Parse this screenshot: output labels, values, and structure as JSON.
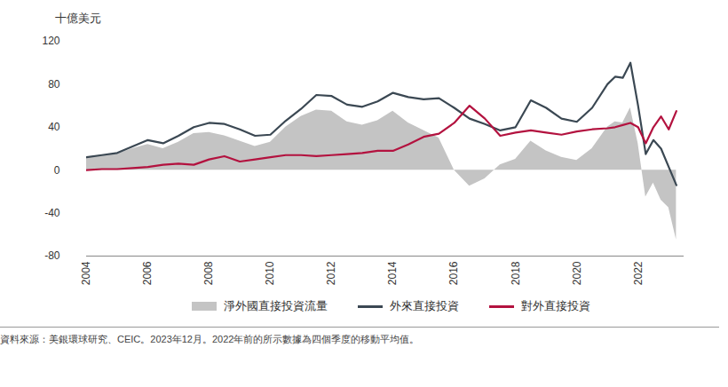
{
  "chart_data": {
    "type": "line",
    "y_label": "十億美元",
    "caption": "資料來源：美銀環球研究、CEIC。2023年12月。2022年前的所示數據為四個季度的移動平均值。",
    "x": [
      2004,
      2004.5,
      2005,
      2005.5,
      2006,
      2006.5,
      2007,
      2007.5,
      2008,
      2008.5,
      2009,
      2009.5,
      2010,
      2010.5,
      2011,
      2011.5,
      2012,
      2012.5,
      2013,
      2013.5,
      2014,
      2014.5,
      2015,
      2015.5,
      2016,
      2016.5,
      2017,
      2017.5,
      2018,
      2018.5,
      2019,
      2019.5,
      2020,
      2020.5,
      2021,
      2021.25,
      2021.5,
      2021.75,
      2022,
      2022.25,
      2022.5,
      2022.75,
      2023,
      2023.25
    ],
    "series": [
      {
        "name": "淨外國直接投資流量",
        "type": "area",
        "color": "#c4c4c4",
        "values": [
          12,
          14,
          15,
          20,
          24,
          20,
          26,
          34,
          35,
          32,
          27,
          22,
          26,
          40,
          50,
          56,
          55,
          45,
          42,
          46,
          55,
          44,
          37,
          30,
          0,
          -15,
          -8,
          5,
          10,
          27,
          18,
          12,
          9,
          20,
          40,
          45,
          44,
          58,
          25,
          -25,
          -12,
          -28,
          -35,
          -65
        ]
      },
      {
        "name": "外來直接投資",
        "type": "line",
        "color": "#3b4853",
        "values": [
          12,
          14,
          16,
          22,
          28,
          25,
          32,
          40,
          44,
          43,
          38,
          32,
          33,
          46,
          57,
          70,
          69,
          61,
          59,
          64,
          72,
          68,
          66,
          67,
          58,
          48,
          43,
          37,
          40,
          65,
          58,
          48,
          45,
          58,
          80,
          87,
          86,
          100,
          60,
          15,
          28,
          20,
          3,
          -14
        ]
      },
      {
        "name": "對外直接投資",
        "type": "line",
        "color": "#b3123f",
        "values": [
          0,
          1,
          1,
          2,
          3,
          5,
          6,
          5,
          10,
          13,
          8,
          10,
          12,
          14,
          14,
          13,
          14,
          15,
          16,
          18,
          18,
          24,
          31,
          34,
          44,
          60,
          48,
          32,
          35,
          37,
          35,
          33,
          36,
          38,
          39,
          40,
          42,
          44,
          40,
          25,
          40,
          50,
          38,
          55
        ]
      }
    ],
    "xlim": [
      2004,
      2023.5
    ],
    "xticks": [
      2004,
      2006,
      2008,
      2010,
      2012,
      2014,
      2016,
      2018,
      2020,
      2022
    ],
    "ylim": [
      -80,
      120
    ],
    "yticks": [
      -80,
      -40,
      0,
      40,
      80,
      120
    ],
    "grid": false,
    "legend": "bottom"
  }
}
